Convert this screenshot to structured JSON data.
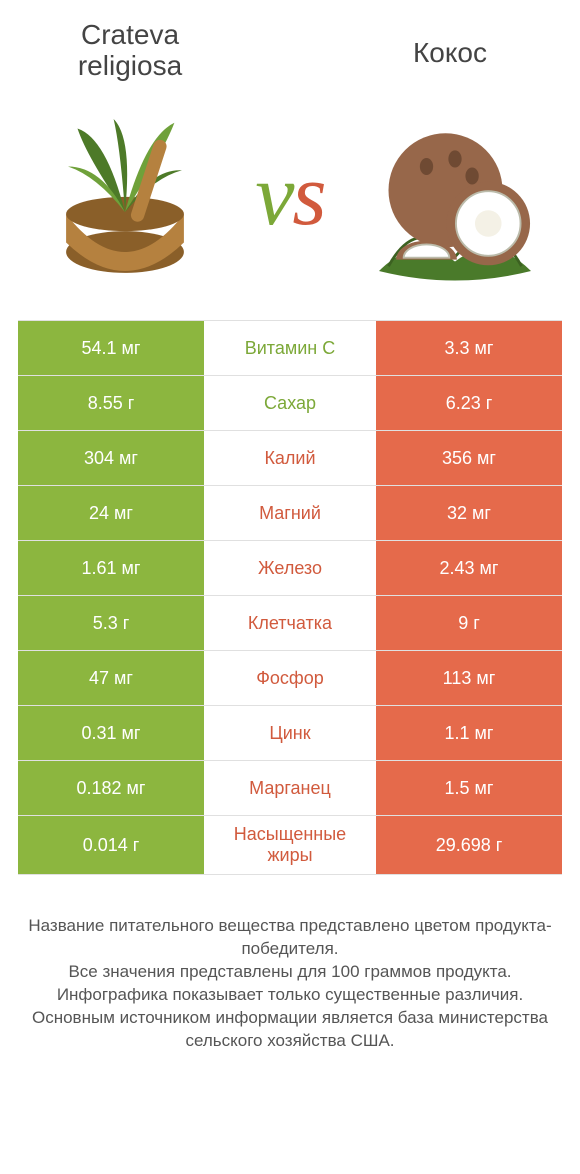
{
  "colors": {
    "left": "#8cb63f",
    "right": "#e56a4b",
    "mid_left_text": "#7ca838",
    "mid_right_text": "#d15a3d",
    "vs_v": "#7ca838",
    "vs_s": "#d15a3d",
    "row_border": "rgba(0,0,0,0.12)"
  },
  "header": {
    "left_line1": "Crateva",
    "left_line2": "religiosa",
    "right": "Кокос"
  },
  "vs": {
    "v": "v",
    "s": "s"
  },
  "rows": [
    {
      "label": "Витамин C",
      "left": "54.1 мг",
      "right": "3.3 мг",
      "winner": "left"
    },
    {
      "label": "Сахар",
      "left": "8.55 г",
      "right": "6.23 г",
      "winner": "left"
    },
    {
      "label": "Калий",
      "left": "304 мг",
      "right": "356 мг",
      "winner": "right"
    },
    {
      "label": "Магний",
      "left": "24 мг",
      "right": "32 мг",
      "winner": "right"
    },
    {
      "label": "Железо",
      "left": "1.61 мг",
      "right": "2.43 мг",
      "winner": "right"
    },
    {
      "label": "Клетчатка",
      "left": "5.3 г",
      "right": "9 г",
      "winner": "right"
    },
    {
      "label": "Фосфор",
      "left": "47 мг",
      "right": "113 мг",
      "winner": "right"
    },
    {
      "label": "Цинк",
      "left": "0.31 мг",
      "right": "1.1 мг",
      "winner": "right"
    },
    {
      "label": "Марганец",
      "left": "0.182 мг",
      "right": "1.5 мг",
      "winner": "right"
    },
    {
      "label": "Насыщенные жиры",
      "left": "0.014 г",
      "right": "29.698 г",
      "winner": "right"
    }
  ],
  "footnotes": [
    "Название питательного вещества представлено цветом продукта-победителя.",
    "Все значения представлены для 100 граммов продукта.",
    "Инфографика показывает только существенные различия.",
    "Основным источником информации является база министерства сельского хозяйства США."
  ]
}
